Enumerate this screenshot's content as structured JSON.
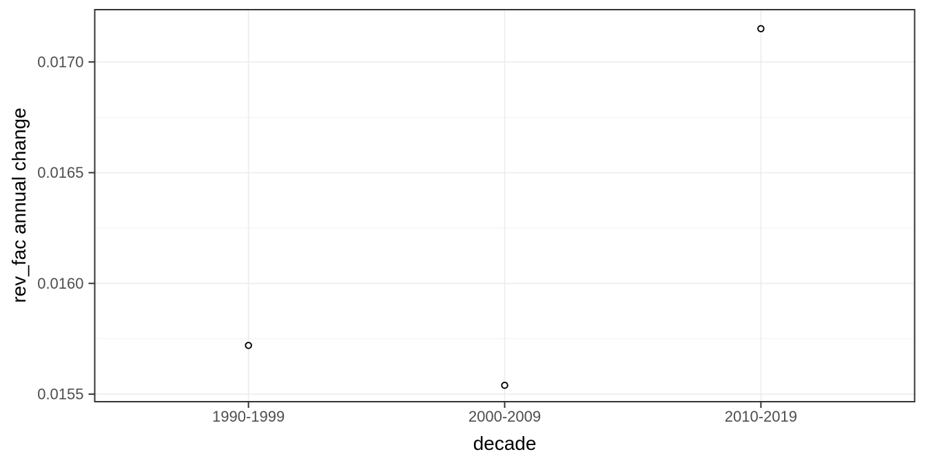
{
  "chart_data": {
    "type": "scatter",
    "title": "",
    "xlabel": "decade",
    "ylabel": "rev_fac annual change",
    "categories": [
      "1990-1999",
      "2000-2009",
      "2010-2019"
    ],
    "values": [
      0.01572,
      0.01554,
      0.01715
    ],
    "yticks": [
      0.0155,
      0.016,
      0.0165,
      0.017
    ],
    "ytick_labels": [
      "0.0155",
      "0.0160",
      "0.0165",
      "0.0170"
    ],
    "ylim": [
      0.015466,
      0.017236
    ],
    "grid": "major-and-minor",
    "legend_position": "none",
    "marker": "open-circle",
    "colors": {
      "background": "#ffffff",
      "panel_background": "#ffffff",
      "panel_border": "#333333",
      "grid_major": "#ebebeb",
      "grid_minor": "#f1f1f1",
      "tick_mark": "#333333",
      "tick_label": "#4d4d4d",
      "axis_title": "#000000",
      "point_stroke": "#000000",
      "point_fill": "#ffffff"
    }
  }
}
